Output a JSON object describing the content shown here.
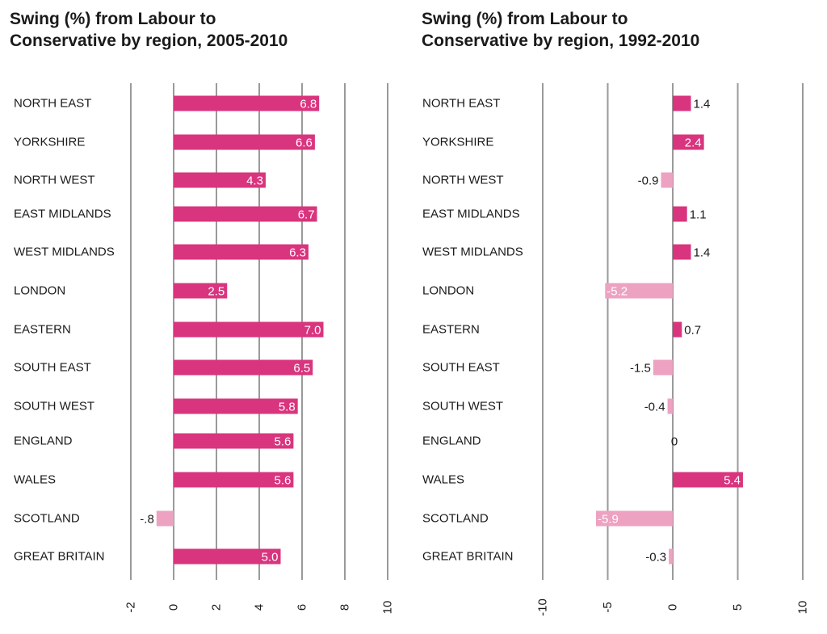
{
  "colors": {
    "positive": "#d9357e",
    "negative": "#eda2c2",
    "grid": "#9a9a9a",
    "text": "#1a1a1a"
  },
  "chart_data": [
    {
      "type": "bar",
      "orientation": "horizontal",
      "title_lines": [
        "Swing (%) from Labour to",
        "Conservative by region, 2005-2010"
      ],
      "xlabel": "",
      "ylabel": "",
      "xlim": [
        -2,
        10
      ],
      "ticks": [
        "-2",
        "0",
        "2",
        "4",
        "6",
        "8",
        "10"
      ],
      "grid": true,
      "categories": [
        "NORTH EAST",
        "YORKSHIRE",
        "NORTH WEST",
        "EAST MIDLANDS",
        "WEST MIDLANDS",
        "LONDON",
        "EASTERN",
        "SOUTH EAST",
        "SOUTH WEST",
        "ENGLAND",
        "WALES",
        "SCOTLAND",
        "GREAT BRITAIN"
      ],
      "values": [
        6.8,
        6.6,
        4.3,
        6.7,
        6.3,
        2.5,
        7.0,
        6.5,
        5.8,
        5.6,
        5.6,
        -0.8,
        5.0
      ],
      "labels": [
        "6.8",
        "6.6",
        "4.3",
        "6.7",
        "6.3",
        "2.5",
        "7.0",
        "6.5",
        "5.8",
        "5.6",
        "5.6",
        "-.8",
        "5.0"
      ]
    },
    {
      "type": "bar",
      "orientation": "horizontal",
      "title_lines": [
        "Swing (%) from Labour to",
        "Conservative by region, 1992-2010"
      ],
      "xlabel": "",
      "ylabel": "",
      "xlim": [
        -10,
        10
      ],
      "ticks": [
        "-10",
        "-5",
        "0",
        "5",
        "10"
      ],
      "grid": true,
      "categories": [
        "NORTH EAST",
        "YORKSHIRE",
        "NORTH WEST",
        "EAST MIDLANDS",
        "WEST MIDLANDS",
        "LONDON",
        "EASTERN",
        "SOUTH EAST",
        "SOUTH WEST",
        "ENGLAND",
        "WALES",
        "SCOTLAND",
        "GREAT BRITAIN"
      ],
      "values": [
        1.4,
        2.4,
        -0.9,
        1.1,
        1.4,
        -5.2,
        0.7,
        -1.5,
        -0.4,
        0,
        5.4,
        -5.9,
        -0.3
      ],
      "labels": [
        "1.4",
        "2.4",
        "-0.9",
        "1.1",
        "1.4",
        "-5.2",
        "0.7",
        "-1.5",
        "-0.4",
        "0",
        "5.4",
        "-5.9",
        "-0.3"
      ]
    }
  ]
}
